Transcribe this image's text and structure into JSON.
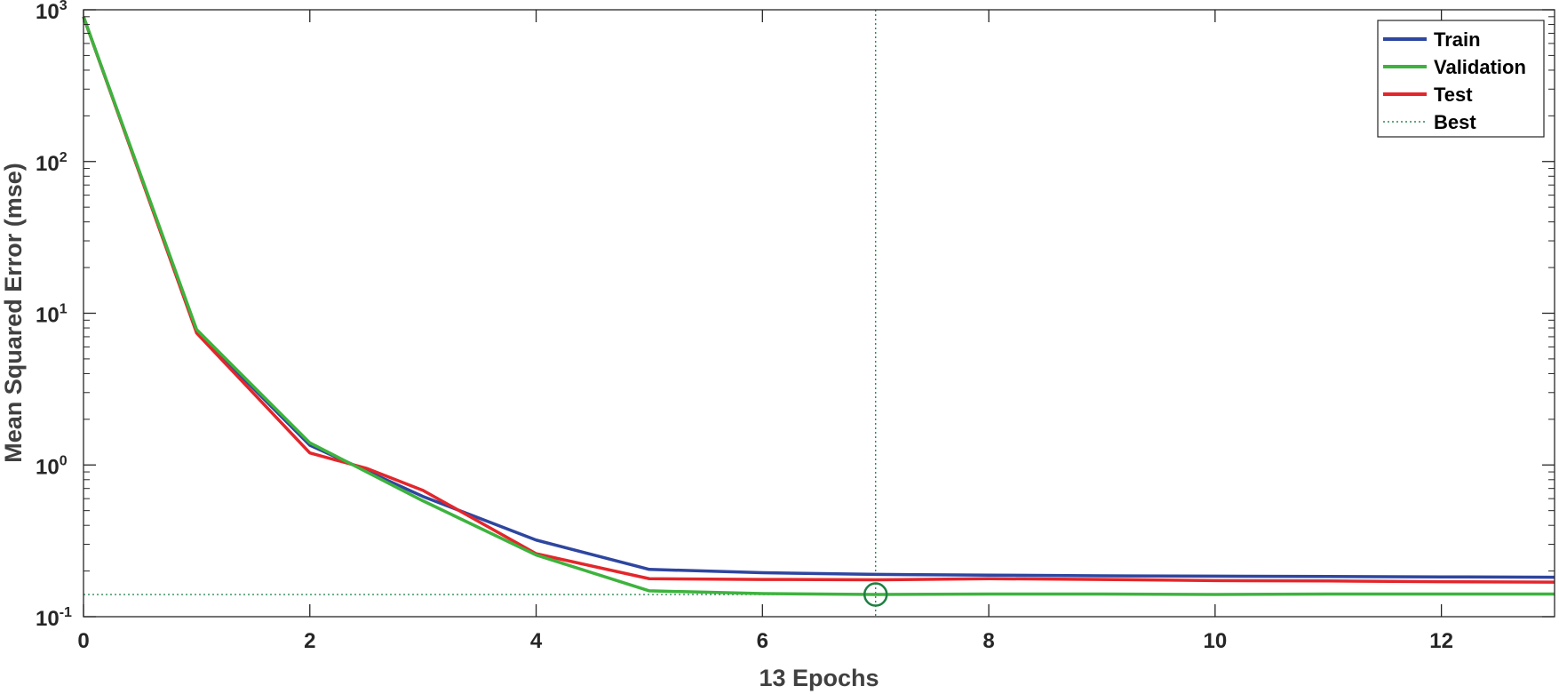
{
  "chart_data": {
    "type": "line",
    "title": "",
    "xlabel": "13 Epochs",
    "ylabel": "Mean Squared Error  (mse)",
    "xlim": [
      0,
      13
    ],
    "ylim": [
      0.1,
      1000
    ],
    "yscale": "log",
    "x_ticks": [
      0,
      2,
      4,
      6,
      8,
      10,
      12
    ],
    "x_tick_labels": [
      "0",
      "2",
      "4",
      "6",
      "8",
      "10",
      "12"
    ],
    "y_ticks": [
      {
        "value": 0.1,
        "base": "10",
        "exp": "-1"
      },
      {
        "value": 1,
        "base": "10",
        "exp": "0"
      },
      {
        "value": 10,
        "base": "10",
        "exp": "1"
      },
      {
        "value": 100,
        "base": "10",
        "exp": "2"
      },
      {
        "value": 1000,
        "base": "10",
        "exp": "3"
      }
    ],
    "grid": false,
    "legend_position": "top-right",
    "series": [
      {
        "name": "Train",
        "color": "#2E46A0",
        "x": [
          0,
          1,
          2,
          3,
          4,
          5,
          6,
          7,
          8,
          9,
          10,
          11,
          12,
          13
        ],
        "y": [
          900,
          7.6,
          1.35,
          0.62,
          0.32,
          0.205,
          0.195,
          0.19,
          0.188,
          0.186,
          0.185,
          0.184,
          0.183,
          0.182
        ]
      },
      {
        "name": "Validation",
        "color": "#3DB33D",
        "x": [
          0,
          1,
          2,
          3,
          4,
          5,
          6,
          7,
          8,
          9,
          10,
          11,
          12,
          13
        ],
        "y": [
          900,
          7.8,
          1.4,
          0.58,
          0.255,
          0.148,
          0.142,
          0.14,
          0.141,
          0.141,
          0.14,
          0.141,
          0.141,
          0.141
        ]
      },
      {
        "name": "Test",
        "color": "#E3262B",
        "x": [
          0,
          1,
          2,
          2.5,
          3,
          4,
          5,
          6,
          7,
          8,
          9,
          10,
          11,
          12,
          13
        ],
        "y": [
          900,
          7.4,
          1.2,
          0.95,
          0.68,
          0.26,
          0.178,
          0.176,
          0.175,
          0.178,
          0.176,
          0.173,
          0.172,
          0.17,
          0.169
        ]
      }
    ],
    "best": {
      "name": "Best",
      "epoch": 7,
      "value": 0.14,
      "color": "#2E8B57"
    },
    "axis_color": "#262626",
    "label_color": "#404040"
  }
}
